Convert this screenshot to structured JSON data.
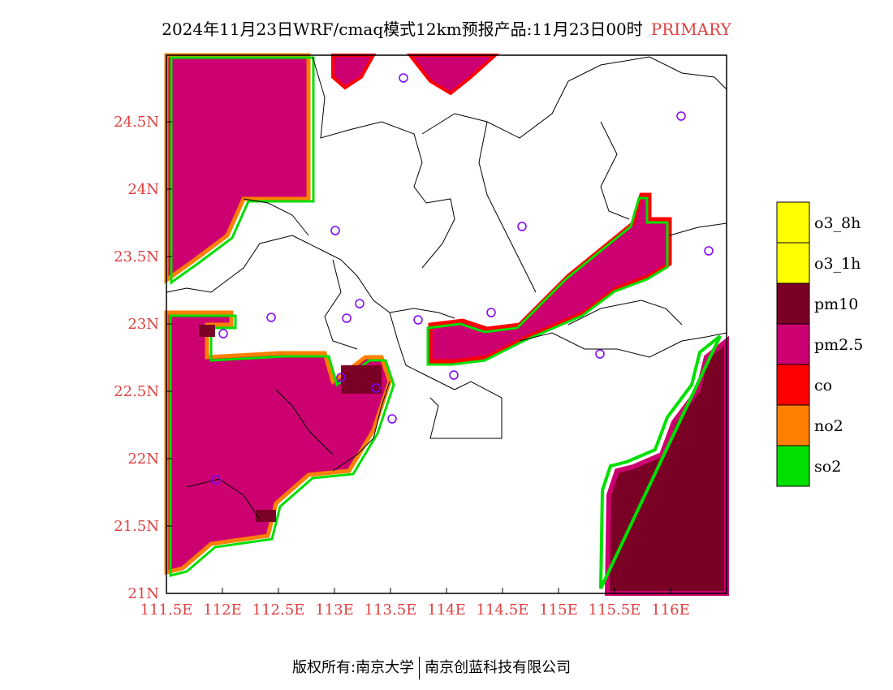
{
  "title": {
    "main": "2024年11月23日WRF/cmaq模式12km预报产品:11月23日00时",
    "tag": "PRIMARY"
  },
  "axes": {
    "x_ticks": [
      "111.5E",
      "112E",
      "112.5E",
      "113E",
      "113.5E",
      "114E",
      "114.5E",
      "115E",
      "115.5E",
      "116E"
    ],
    "y_ticks": [
      "21N",
      "21.5N",
      "22N",
      "22.5N",
      "23N",
      "23.5N",
      "24N",
      "24.5N"
    ],
    "tick_color": "#e04040"
  },
  "legend": [
    {
      "label": "o3_8h",
      "color": "#ffff00"
    },
    {
      "label": "o3_1h",
      "color": "#ffff00"
    },
    {
      "label": "pm10",
      "color": "#7a0026"
    },
    {
      "label": "pm2.5",
      "color": "#cc0070"
    },
    {
      "label": "co",
      "color": "#ff0000"
    },
    {
      "label": "no2",
      "color": "#ff8000"
    },
    {
      "label": "so2",
      "color": "#00e000"
    }
  ],
  "footer": {
    "left": "版权所有:南京大学",
    "right": "南京创蓝科技有限公司"
  }
}
